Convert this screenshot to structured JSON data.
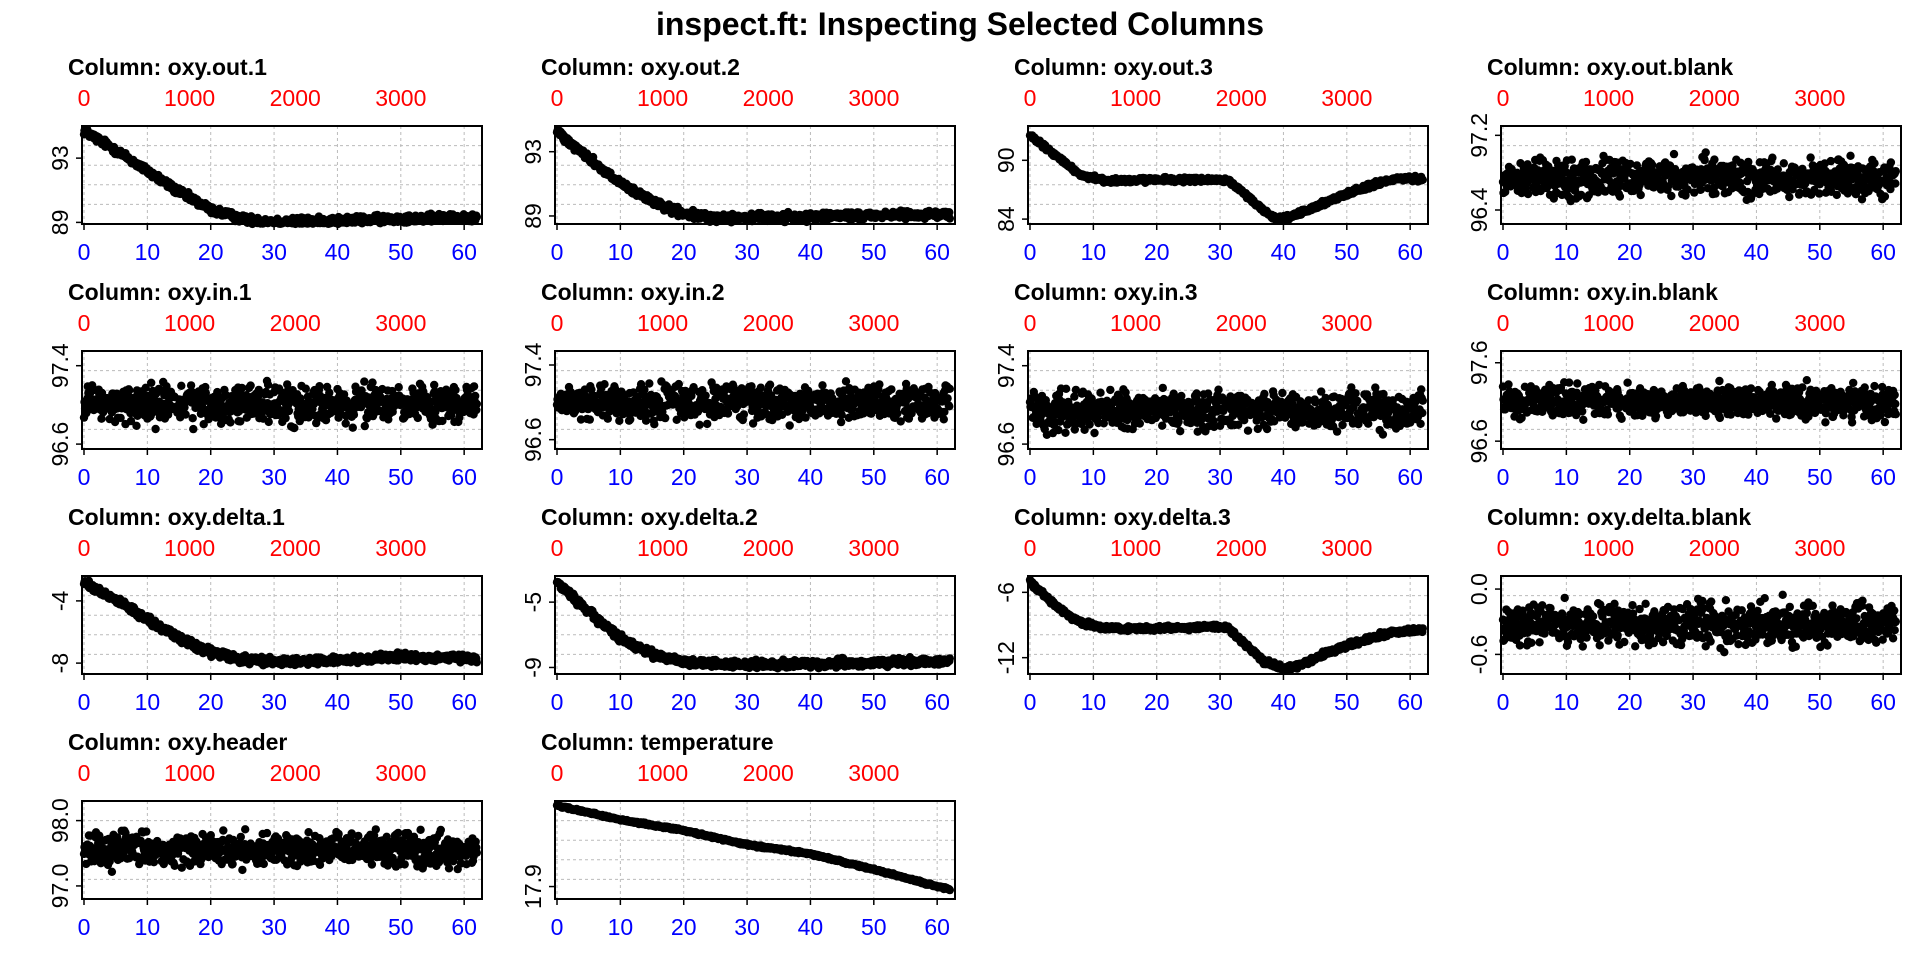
{
  "title": "inspect.ft: Inspecting Selected Columns",
  "colors": {
    "bottom_axis": "#0000ff",
    "top_axis": "#ff0000",
    "points": "#000000",
    "grid": "#bbbbbb"
  },
  "chart_data": [
    {
      "type": "scatter",
      "title": "Column: oxy.out.1",
      "x_bottom": {
        "ticks": [
          "0",
          "10",
          "20",
          "30",
          "40",
          "50",
          "60"
        ],
        "range": [
          0,
          62.5
        ]
      },
      "x_top": {
        "ticks": [
          "0",
          "1000",
          "2000",
          "3000"
        ],
        "range": [
          0,
          3750
        ]
      },
      "y": {
        "ticks": [
          "89",
          "93"
        ],
        "range": [
          88.9,
          95.0
        ]
      },
      "grid": true,
      "series": [
        {
          "shape": "trend",
          "points": [
            [
              0,
              94.7
            ],
            [
              5,
              93.5
            ],
            [
              10,
              92.2
            ],
            [
              15,
              90.9
            ],
            [
              20,
              89.8
            ],
            [
              25,
              89.2
            ],
            [
              30,
              89.05
            ],
            [
              40,
              89.1
            ],
            [
              50,
              89.25
            ],
            [
              62,
              89.3
            ]
          ],
          "noise": 0.35
        }
      ]
    },
    {
      "type": "scatter",
      "title": "Column: oxy.out.2",
      "x_bottom": {
        "ticks": [
          "0",
          "10",
          "20",
          "30",
          "40",
          "50",
          "60"
        ],
        "range": [
          0,
          62.5
        ]
      },
      "x_top": {
        "ticks": [
          "0",
          "1000",
          "2000",
          "3000"
        ],
        "range": [
          0,
          3750
        ]
      },
      "y": {
        "ticks": [
          "89",
          "93"
        ],
        "range": [
          88.5,
          94.6
        ]
      },
      "grid": true,
      "series": [
        {
          "shape": "trend",
          "points": [
            [
              0,
              94.3
            ],
            [
              5,
              92.6
            ],
            [
              10,
              91.0
            ],
            [
              15,
              89.9
            ],
            [
              20,
              89.1
            ],
            [
              25,
              88.9
            ],
            [
              35,
              88.9
            ],
            [
              50,
              89.05
            ],
            [
              62,
              89.1
            ]
          ],
          "noise": 0.35
        }
      ]
    },
    {
      "type": "scatter",
      "title": "Column: oxy.out.3",
      "x_bottom": {
        "ticks": [
          "0",
          "10",
          "20",
          "30",
          "40",
          "50",
          "60"
        ],
        "range": [
          0,
          62.5
        ]
      },
      "x_top": {
        "ticks": [
          "0",
          "1000",
          "2000",
          "3000"
        ],
        "range": [
          0,
          3750
        ]
      },
      "y": {
        "ticks": [
          "84",
          "90"
        ],
        "range": [
          83.5,
          93.5
        ]
      },
      "grid": true,
      "series": [
        {
          "shape": "trend",
          "points": [
            [
              0,
              92.5
            ],
            [
              4,
              90.5
            ],
            [
              8,
              88.5
            ],
            [
              12,
              87.9
            ],
            [
              20,
              88.0
            ],
            [
              31,
              88.0
            ],
            [
              34,
              86.5
            ],
            [
              37,
              84.8
            ],
            [
              39,
              84.0
            ],
            [
              42,
              84.4
            ],
            [
              46,
              85.5
            ],
            [
              50,
              86.6
            ],
            [
              55,
              87.7
            ],
            [
              58,
              88.1
            ],
            [
              62,
              88.1
            ]
          ],
          "noise": 0.35
        }
      ]
    },
    {
      "type": "scatter",
      "title": "Column: oxy.out.blank",
      "x_bottom": {
        "ticks": [
          "0",
          "10",
          "20",
          "30",
          "40",
          "50",
          "60"
        ],
        "range": [
          0,
          62.5
        ]
      },
      "x_top": {
        "ticks": [
          "0",
          "1000",
          "2000",
          "3000"
        ],
        "range": [
          0,
          3750
        ]
      },
      "y": {
        "ticks": [
          "96.4",
          "97.2"
        ],
        "range": [
          96.25,
          97.3
        ]
      },
      "grid": true,
      "series": [
        {
          "shape": "noise",
          "mean": 96.75,
          "noise": 0.3
        }
      ]
    },
    {
      "type": "scatter",
      "title": "Column: oxy.in.1",
      "x_bottom": {
        "ticks": [
          "0",
          "10",
          "20",
          "30",
          "40",
          "50",
          "60"
        ],
        "range": [
          0,
          62.5
        ]
      },
      "x_top": {
        "ticks": [
          "0",
          "1000",
          "2000",
          "3000"
        ],
        "range": [
          0,
          3750
        ]
      },
      "y": {
        "ticks": [
          "96.6",
          "97.4"
        ],
        "range": [
          96.55,
          97.55
        ]
      },
      "grid": true,
      "series": [
        {
          "shape": "noise",
          "mean": 97.0,
          "noise": 0.28
        }
      ]
    },
    {
      "type": "scatter",
      "title": "Column: oxy.in.2",
      "x_bottom": {
        "ticks": [
          "0",
          "10",
          "20",
          "30",
          "40",
          "50",
          "60"
        ],
        "range": [
          0,
          62.5
        ]
      },
      "x_top": {
        "ticks": [
          "0",
          "1000",
          "2000",
          "3000"
        ],
        "range": [
          0,
          3750
        ]
      },
      "y": {
        "ticks": [
          "96.6",
          "97.4"
        ],
        "range": [
          96.5,
          97.55
        ]
      },
      "grid": true,
      "series": [
        {
          "shape": "noise",
          "mean": 97.0,
          "noise": 0.28
        }
      ]
    },
    {
      "type": "scatter",
      "title": "Column: oxy.in.3",
      "x_bottom": {
        "ticks": [
          "0",
          "10",
          "20",
          "30",
          "40",
          "50",
          "60"
        ],
        "range": [
          0,
          62.5
        ]
      },
      "x_top": {
        "ticks": [
          "0",
          "1000",
          "2000",
          "3000"
        ],
        "range": [
          0,
          3750
        ]
      },
      "y": {
        "ticks": [
          "96.6",
          "97.4"
        ],
        "range": [
          96.55,
          97.55
        ]
      },
      "grid": true,
      "series": [
        {
          "shape": "noise",
          "mean": 96.95,
          "noise": 0.28
        }
      ]
    },
    {
      "type": "scatter",
      "title": "Column: oxy.in.blank",
      "x_bottom": {
        "ticks": [
          "0",
          "10",
          "20",
          "30",
          "40",
          "50",
          "60"
        ],
        "range": [
          0,
          62.5
        ]
      },
      "x_top": {
        "ticks": [
          "0",
          "1000",
          "2000",
          "3000"
        ],
        "range": [
          0,
          3750
        ]
      },
      "y": {
        "ticks": [
          "96.6",
          "97.6"
        ],
        "range": [
          96.5,
          97.75
        ]
      },
      "grid": true,
      "series": [
        {
          "shape": "noise",
          "mean": 97.1,
          "noise": 0.3
        }
      ]
    },
    {
      "type": "scatter",
      "title": "Column: oxy.delta.1",
      "x_bottom": {
        "ticks": [
          "0",
          "10",
          "20",
          "30",
          "40",
          "50",
          "60"
        ],
        "range": [
          0,
          62.5
        ]
      },
      "x_top": {
        "ticks": [
          "0",
          "1000",
          "2000",
          "3000"
        ],
        "range": [
          0,
          3750
        ]
      },
      "y": {
        "ticks": [
          "-8",
          "-4"
        ],
        "range": [
          -8.7,
          -2.4
        ]
      },
      "grid": true,
      "series": [
        {
          "shape": "trend",
          "points": [
            [
              0,
              -2.8
            ],
            [
              5,
              -3.9
            ],
            [
              10,
              -5.2
            ],
            [
              15,
              -6.4
            ],
            [
              20,
              -7.3
            ],
            [
              25,
              -7.8
            ],
            [
              30,
              -7.9
            ],
            [
              40,
              -7.85
            ],
            [
              50,
              -7.6
            ],
            [
              62,
              -7.7
            ]
          ],
          "noise": 0.35
        }
      ]
    },
    {
      "type": "scatter",
      "title": "Column: oxy.delta.2",
      "x_bottom": {
        "ticks": [
          "0",
          "10",
          "20",
          "30",
          "40",
          "50",
          "60"
        ],
        "range": [
          0,
          62.5
        ]
      },
      "x_top": {
        "ticks": [
          "0",
          "1000",
          "2000",
          "3000"
        ],
        "range": [
          0,
          3750
        ]
      },
      "y": {
        "ticks": [
          "-9",
          "-5"
        ],
        "range": [
          -9.4,
          -3.4
        ]
      },
      "grid": true,
      "series": [
        {
          "shape": "trend",
          "points": [
            [
              0,
              -3.8
            ],
            [
              5,
              -5.6
            ],
            [
              10,
              -7.2
            ],
            [
              15,
              -8.2
            ],
            [
              20,
              -8.7
            ],
            [
              25,
              -8.8
            ],
            [
              40,
              -8.8
            ],
            [
              50,
              -8.7
            ],
            [
              62,
              -8.6
            ]
          ],
          "noise": 0.35
        }
      ]
    },
    {
      "type": "scatter",
      "title": "Column: oxy.delta.3",
      "x_bottom": {
        "ticks": [
          "0",
          "10",
          "20",
          "30",
          "40",
          "50",
          "60"
        ],
        "range": [
          0,
          62.5
        ]
      },
      "x_top": {
        "ticks": [
          "0",
          "1000",
          "2000",
          "3000"
        ],
        "range": [
          0,
          3750
        ]
      },
      "y": {
        "ticks": [
          "-12",
          "-6"
        ],
        "range": [
          -13.5,
          -4.5
        ]
      },
      "grid": true,
      "series": [
        {
          "shape": "trend",
          "points": [
            [
              0,
              -5.0
            ],
            [
              4,
              -7.2
            ],
            [
              8,
              -8.8
            ],
            [
              12,
              -9.3
            ],
            [
              20,
              -9.3
            ],
            [
              31,
              -9.2
            ],
            [
              34,
              -10.8
            ],
            [
              37,
              -12.4
            ],
            [
              40,
              -13.0
            ],
            [
              43,
              -12.6
            ],
            [
              47,
              -11.5
            ],
            [
              52,
              -10.5
            ],
            [
              57,
              -9.7
            ],
            [
              62,
              -9.4
            ]
          ],
          "noise": 0.35
        }
      ]
    },
    {
      "type": "scatter",
      "title": "Column: oxy.delta.blank",
      "x_bottom": {
        "ticks": [
          "0",
          "10",
          "20",
          "30",
          "40",
          "50",
          "60"
        ],
        "range": [
          0,
          62.5
        ]
      },
      "x_top": {
        "ticks": [
          "0",
          "1000",
          "2000",
          "3000"
        ],
        "range": [
          0,
          3750
        ]
      },
      "y": {
        "ticks": [
          "-0.6",
          "0.0"
        ],
        "range": [
          -0.78,
          0.12
        ]
      },
      "grid": true,
      "series": [
        {
          "shape": "noise",
          "mean": -0.32,
          "noise": 0.28
        }
      ]
    },
    {
      "type": "scatter",
      "title": "Column: oxy.header",
      "x_bottom": {
        "ticks": [
          "0",
          "10",
          "20",
          "30",
          "40",
          "50",
          "60"
        ],
        "range": [
          0,
          62.5
        ]
      },
      "x_top": {
        "ticks": [
          "0",
          "1000",
          "2000",
          "3000"
        ],
        "range": [
          0,
          3750
        ]
      },
      "y": {
        "ticks": [
          "97.0",
          "98.0"
        ],
        "range": [
          96.8,
          98.3
        ]
      },
      "grid": true,
      "series": [
        {
          "shape": "noise",
          "mean": 97.55,
          "noise": 0.38
        }
      ]
    },
    {
      "type": "scatter",
      "title": "Column: temperature",
      "x_bottom": {
        "ticks": [
          "0",
          "10",
          "20",
          "30",
          "40",
          "50",
          "60"
        ],
        "range": [
          0,
          62.5
        ]
      },
      "x_top": {
        "ticks": [
          "0",
          "1000",
          "2000",
          "3000"
        ],
        "range": [
          0,
          3750
        ]
      },
      "y": {
        "ticks": [
          "17.9"
        ],
        "range": [
          17.82,
          18.45
        ]
      },
      "grid": true,
      "series": [
        {
          "shape": "trend",
          "points": [
            [
              0,
              18.42
            ],
            [
              10,
              18.33
            ],
            [
              20,
              18.26
            ],
            [
              30,
              18.17
            ],
            [
              40,
              18.11
            ],
            [
              50,
              18.01
            ],
            [
              62,
              17.88
            ]
          ],
          "noise": 0.01
        }
      ]
    }
  ]
}
